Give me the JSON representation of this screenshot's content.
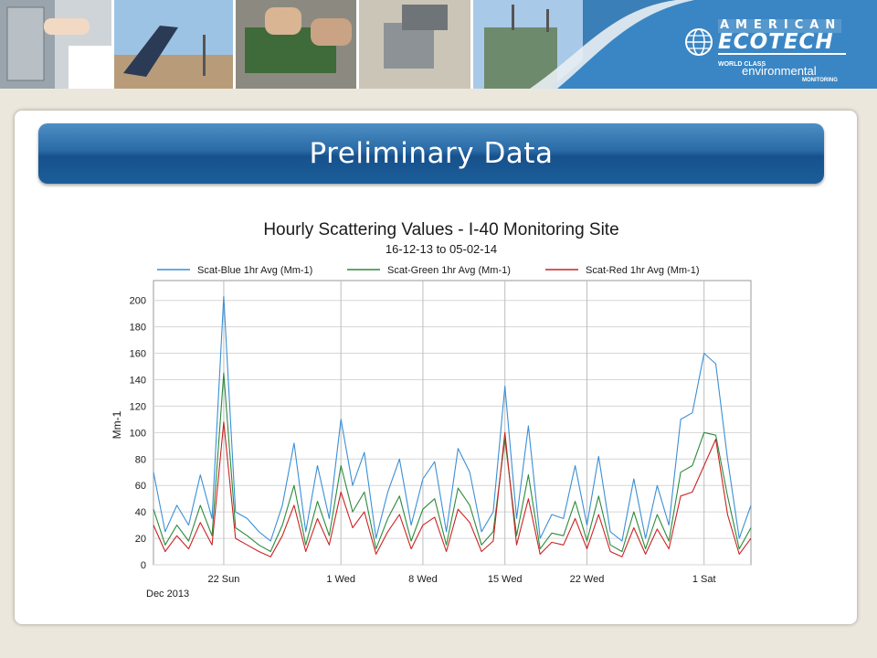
{
  "slide_title": "Preliminary Data",
  "brand": {
    "name_top": "AMERICAN",
    "name_main": "ECOTECH",
    "tagline_1": "WORLD CLASS",
    "tagline_2": "environmental",
    "tagline_3": "MONITORING"
  },
  "header_photos": [
    "field-technician",
    "solar-panel-station",
    "circuit-board-work",
    "sampler-instrument",
    "monitoring-shelter"
  ],
  "colors": {
    "header_blue": "#3a7fb8",
    "banner_blue": "#1f5f9e",
    "series_blue": "#3a8fd6",
    "series_green": "#2c8a3c",
    "series_red": "#cc2222"
  },
  "chart_data": {
    "type": "line",
    "title": "Hourly Scattering Values - I-40 Monitoring Site",
    "subtitle": "16-12-13 to 05-02-14",
    "xlabel": "",
    "ylabel": "Mm-1",
    "ylim": [
      0,
      215
    ],
    "yticks": [
      0,
      20,
      40,
      60,
      80,
      100,
      120,
      140,
      160,
      180,
      200
    ],
    "xlim": [
      "2013-12-16",
      "2014-02-05"
    ],
    "xticks": [
      {
        "label": "22 Sun",
        "date": "2013-12-22"
      },
      {
        "label": "1 Wed",
        "date": "2014-01-01"
      },
      {
        "label": "8 Wed",
        "date": "2014-01-08"
      },
      {
        "label": "15 Wed",
        "date": "2014-01-15"
      },
      {
        "label": "22 Wed",
        "date": "2014-01-22"
      },
      {
        "label": "1 Sat",
        "date": "2014-02-01"
      }
    ],
    "x_sublabel": "Dec 2013",
    "grid": true,
    "legend_placement": "top",
    "series": [
      {
        "name": "Scat-Blue 1hr Avg (Mm-1)",
        "color": "#3a8fd6",
        "x": [
          "2013-12-16",
          "2013-12-17",
          "2013-12-18",
          "2013-12-19",
          "2013-12-20",
          "2013-12-21",
          "2013-12-22",
          "2013-12-23",
          "2013-12-24",
          "2013-12-25",
          "2013-12-26",
          "2013-12-27",
          "2013-12-28",
          "2013-12-29",
          "2013-12-30",
          "2013-12-31",
          "2014-01-01",
          "2014-01-02",
          "2014-01-03",
          "2014-01-04",
          "2014-01-05",
          "2014-01-06",
          "2014-01-07",
          "2014-01-08",
          "2014-01-09",
          "2014-01-10",
          "2014-01-11",
          "2014-01-12",
          "2014-01-13",
          "2014-01-14",
          "2014-01-15",
          "2014-01-16",
          "2014-01-17",
          "2014-01-18",
          "2014-01-19",
          "2014-01-20",
          "2014-01-21",
          "2014-01-22",
          "2014-01-23",
          "2014-01-24",
          "2014-01-25",
          "2014-01-26",
          "2014-01-27",
          "2014-01-28",
          "2014-01-29",
          "2014-01-30",
          "2014-01-31",
          "2014-02-01",
          "2014-02-02",
          "2014-02-03",
          "2014-02-04",
          "2014-02-05"
        ],
        "values": [
          70,
          25,
          45,
          30,
          68,
          35,
          203,
          40,
          35,
          25,
          18,
          45,
          92,
          25,
          75,
          35,
          110,
          60,
          85,
          20,
          55,
          80,
          30,
          65,
          78,
          25,
          88,
          70,
          25,
          40,
          135,
          35,
          105,
          20,
          38,
          35,
          75,
          30,
          82,
          25,
          18,
          65,
          20,
          60,
          30,
          110,
          115,
          160,
          152,
          80,
          20,
          45
        ]
      },
      {
        "name": "Scat-Green 1hr Avg (Mm-1)",
        "color": "#2c8a3c",
        "x": [
          "2013-12-16",
          "2013-12-17",
          "2013-12-18",
          "2013-12-19",
          "2013-12-20",
          "2013-12-21",
          "2013-12-22",
          "2013-12-23",
          "2013-12-24",
          "2013-12-25",
          "2013-12-26",
          "2013-12-27",
          "2013-12-28",
          "2013-12-29",
          "2013-12-30",
          "2013-12-31",
          "2014-01-01",
          "2014-01-02",
          "2014-01-03",
          "2014-01-04",
          "2014-01-05",
          "2014-01-06",
          "2014-01-07",
          "2014-01-08",
          "2014-01-09",
          "2014-01-10",
          "2014-01-11",
          "2014-01-12",
          "2014-01-13",
          "2014-01-14",
          "2014-01-15",
          "2014-01-16",
          "2014-01-17",
          "2014-01-18",
          "2014-01-19",
          "2014-01-20",
          "2014-01-21",
          "2014-01-22",
          "2014-01-23",
          "2014-01-24",
          "2014-01-25",
          "2014-01-26",
          "2014-01-27",
          "2014-01-28",
          "2014-01-29",
          "2014-01-30",
          "2014-01-31",
          "2014-02-01",
          "2014-02-02",
          "2014-02-03",
          "2014-02-04",
          "2014-02-05"
        ],
        "values": [
          42,
          15,
          30,
          18,
          45,
          22,
          145,
          28,
          22,
          15,
          10,
          30,
          60,
          15,
          48,
          22,
          75,
          40,
          55,
          12,
          35,
          52,
          18,
          42,
          50,
          15,
          58,
          45,
          15,
          25,
          95,
          22,
          68,
          12,
          24,
          22,
          48,
          18,
          52,
          15,
          10,
          40,
          12,
          38,
          18,
          70,
          75,
          100,
          98,
          52,
          12,
          28
        ]
      },
      {
        "name": "Scat-Red 1hr Avg (Mm-1)",
        "color": "#cc2222",
        "x": [
          "2013-12-16",
          "2013-12-17",
          "2013-12-18",
          "2013-12-19",
          "2013-12-20",
          "2013-12-21",
          "2013-12-22",
          "2013-12-23",
          "2013-12-24",
          "2013-12-25",
          "2013-12-26",
          "2013-12-27",
          "2013-12-28",
          "2013-12-29",
          "2013-12-30",
          "2013-12-31",
          "2014-01-01",
          "2014-01-02",
          "2014-01-03",
          "2014-01-04",
          "2014-01-05",
          "2014-01-06",
          "2014-01-07",
          "2014-01-08",
          "2014-01-09",
          "2014-01-10",
          "2014-01-11",
          "2014-01-12",
          "2014-01-13",
          "2014-01-14",
          "2014-01-15",
          "2014-01-16",
          "2014-01-17",
          "2014-01-18",
          "2014-01-19",
          "2014-01-20",
          "2014-01-21",
          "2014-01-22",
          "2014-01-23",
          "2014-01-24",
          "2014-01-25",
          "2014-01-26",
          "2014-01-27",
          "2014-01-28",
          "2014-01-29",
          "2014-01-30",
          "2014-01-31",
          "2014-02-01",
          "2014-02-02",
          "2014-02-03",
          "2014-02-04",
          "2014-02-05"
        ],
        "values": [
          30,
          10,
          22,
          12,
          32,
          15,
          108,
          20,
          15,
          10,
          6,
          22,
          45,
          10,
          35,
          15,
          55,
          28,
          40,
          8,
          25,
          38,
          12,
          30,
          36,
          10,
          42,
          32,
          10,
          18,
          100,
          15,
          50,
          8,
          17,
          15,
          35,
          12,
          38,
          10,
          6,
          28,
          8,
          27,
          12,
          52,
          55,
          75,
          95,
          38,
          8,
          20
        ]
      }
    ]
  }
}
